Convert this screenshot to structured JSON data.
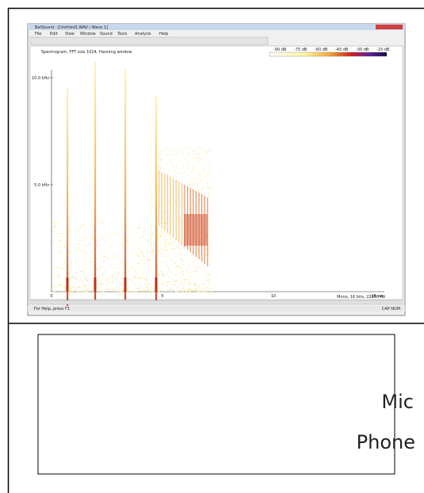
{
  "window": {
    "title": "BatSound - [Untitled1.WAV / Wave 1]",
    "menu": [
      "File",
      "Edit",
      "View",
      "Window",
      "Sound",
      "Tools",
      "Analysis",
      "Help"
    ],
    "spectrogram_label": "Spectrogram, FFT size 1024, Hanning window",
    "color_scale": [
      "-90 dB",
      "-75 dB",
      "-60 dB",
      "-45 dB",
      "-30 dB",
      "-15 dB"
    ],
    "y_labels": [
      "10.0 kHz",
      "5.0 kHz"
    ],
    "x_labels": [
      "0",
      "5",
      "10",
      "15 sec"
    ],
    "format": "Mono, 16 bits, 22050 Hz",
    "status": "For Help, press F1",
    "indicators": "CAP  NUM"
  },
  "labels": [
    "Mic",
    "Phone"
  ]
}
